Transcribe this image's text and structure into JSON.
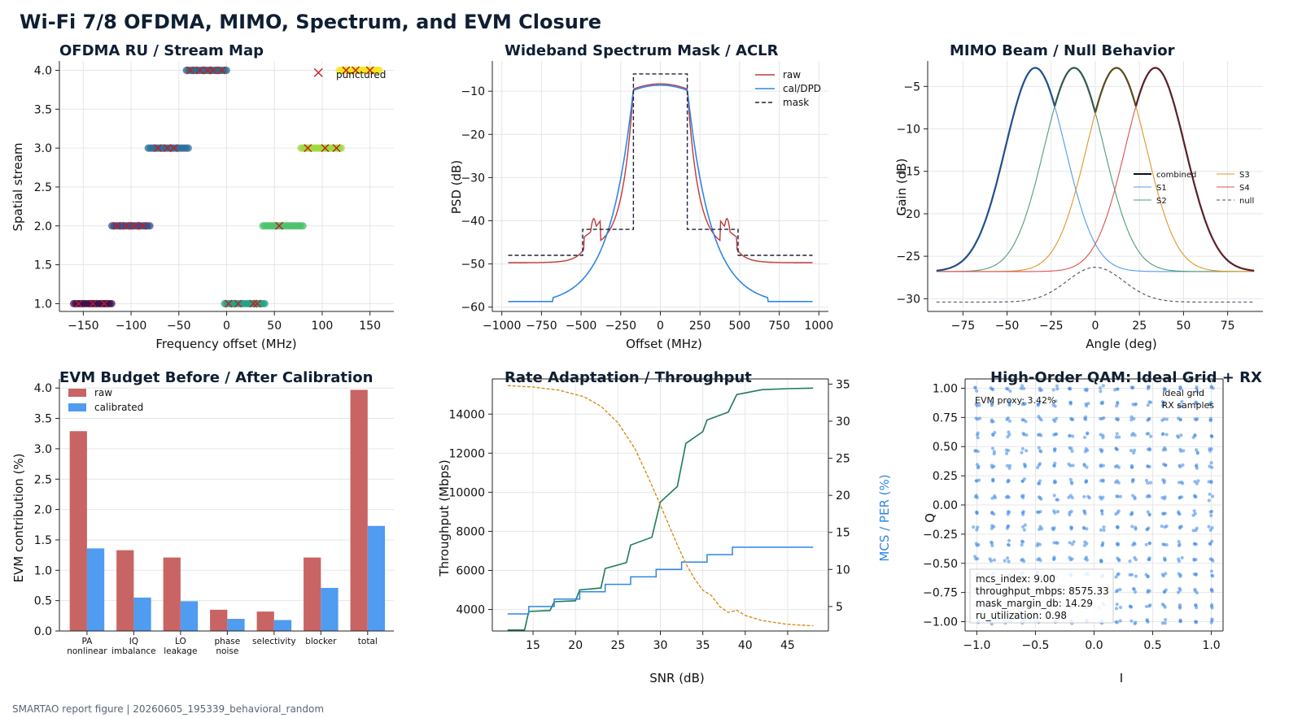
{
  "figure": {
    "title": "Wi-Fi 7/8 OFDMA, MIMO, Spectrum, and EVM Closure",
    "footer": "SMARTAO report figure | 20260605_195339_behavioral_random"
  },
  "chart_data": [
    {
      "id": "ofdma",
      "type": "scatter",
      "title": "OFDMA RU / Stream Map",
      "xlabel": "Frequency offset (MHz)",
      "ylabel": "Spatial stream",
      "xlim": [
        -175,
        175
      ],
      "ylim": [
        0.9,
        4.12
      ],
      "xticks": [
        -150,
        -100,
        -50,
        0,
        50,
        100,
        150
      ],
      "yticks": [
        1.0,
        1.5,
        2.0,
        2.5,
        3.0,
        3.5,
        4.0
      ],
      "grid": true,
      "annotation": "punctured",
      "ru_segments": [
        {
          "stream": 1,
          "x0": -160,
          "x1": -120,
          "color": "#3b0f4f",
          "marks": [
            -155,
            -140,
            -128
          ]
        },
        {
          "stream": 1,
          "x0": -2,
          "x1": 40,
          "color": "#21a08a",
          "marks": [
            2,
            12,
            28,
            32
          ]
        },
        {
          "stream": 2,
          "x0": -120,
          "x1": -80,
          "color": "#3d4d8a",
          "marks": [
            -115,
            -105,
            -96,
            -88
          ]
        },
        {
          "stream": 2,
          "x0": 38,
          "x1": 80,
          "color": "#4cc26c",
          "marks": [
            55
          ]
        },
        {
          "stream": 3,
          "x0": -82,
          "x1": -40,
          "color": "#2f6e98",
          "marks": [
            -72,
            -62,
            -55
          ]
        },
        {
          "stream": 3,
          "x0": 78,
          "x1": 120,
          "color": "#9dd93b",
          "marks": [
            85,
            103,
            115
          ]
        },
        {
          "stream": 4,
          "x0": -42,
          "x1": 0,
          "color": "#30698e",
          "marks": [
            -38,
            -28,
            -20,
            -14,
            -5
          ]
        },
        {
          "stream": 4,
          "x0": 118,
          "x1": 160,
          "color": "#f5e51f",
          "marks": [
            125,
            135,
            150
          ]
        }
      ],
      "punctured_marker": {
        "x": 96,
        "stream": 3.97
      }
    },
    {
      "id": "spectrum",
      "type": "line",
      "title": "Wideband Spectrum Mask / ACLR",
      "xlabel": "Offset (MHz)",
      "ylabel": "PSD (dB)",
      "xlim": [
        -1060,
        1060
      ],
      "ylim": [
        -61,
        -3
      ],
      "xticks": [
        -1000,
        -750,
        -500,
        -250,
        0,
        250,
        500,
        750,
        1000
      ],
      "yticks": [
        -60,
        -50,
        -40,
        -30,
        -20,
        -10
      ],
      "grid": true,
      "legend": "top-right",
      "series": [
        {
          "name": "raw",
          "color": "#c0393b"
        },
        {
          "name": "cal/DPD",
          "color": "#2f86e6"
        },
        {
          "name": "mask",
          "color": "#1b2338"
        }
      ],
      "mask": [
        [
          -960,
          -48
        ],
        [
          -490,
          -48
        ],
        [
          -490,
          -42
        ],
        [
          -170,
          -42
        ],
        [
          -170,
          -6
        ],
        [
          170,
          -6
        ],
        [
          170,
          -42
        ],
        [
          490,
          -42
        ],
        [
          490,
          -48
        ],
        [
          960,
          -48
        ]
      ],
      "raw_curve": {
        "peak": -8.3,
        "floor": -49.7,
        "shoulder_at": 420,
        "shoulder_level": -43.5
      },
      "cal_curve": {
        "peak": -8.6,
        "floor": -58.7,
        "floor_from": 680
      }
    },
    {
      "id": "mimo",
      "type": "line",
      "title": "MIMO Beam / Null Behavior",
      "xlabel": "Angle (deg)",
      "ylabel": "Gain (dB)",
      "xlim": [
        -95,
        95
      ],
      "ylim": [
        -31.5,
        -2
      ],
      "xticks": [
        -75,
        -50,
        -25,
        0,
        25,
        50,
        75
      ],
      "yticks": [
        -30,
        -25,
        -20,
        -15,
        -10,
        -5
      ],
      "grid": true,
      "legend": "center-right",
      "beams": [
        {
          "name": "S1",
          "center": -34,
          "color": "#4d9ee8"
        },
        {
          "name": "S2",
          "center": -12,
          "color": "#4f9d72"
        },
        {
          "name": "S3",
          "center": 12,
          "color": "#e0952a"
        },
        {
          "name": "S4",
          "center": 34,
          "color": "#d9534f"
        }
      ],
      "beam_peak": -2.8,
      "beam_floor": -26.8,
      "beam_width": 17,
      "combined": {
        "name": "combined",
        "color": "#0d0d1a"
      },
      "null": {
        "name": "null",
        "color": "#4a4f63",
        "floor": -30.4,
        "peak": -26.3
      }
    },
    {
      "id": "evm",
      "type": "bar",
      "title": "EVM Budget Before / After Calibration",
      "ylabel": "EVM contribution (%)",
      "ylim": [
        0,
        4.15
      ],
      "yticks": [
        0.0,
        0.5,
        1.0,
        1.5,
        2.0,
        2.5,
        3.0,
        3.5,
        4.0
      ],
      "grid": true,
      "legend": "top-left",
      "categories": [
        [
          "PA",
          "nonlinear"
        ],
        [
          "IQ",
          "imbalance"
        ],
        [
          "LO",
          "leakage"
        ],
        [
          "phase",
          "noise"
        ],
        [
          "selectivity"
        ],
        [
          "blocker"
        ],
        [
          "total"
        ]
      ],
      "series": [
        {
          "name": "raw",
          "color": "#c96464",
          "values": [
            3.29,
            1.33,
            1.21,
            0.35,
            0.32,
            1.21,
            3.97
          ]
        },
        {
          "name": "calibrated",
          "color": "#4f9cf0",
          "values": [
            1.36,
            0.55,
            0.49,
            0.2,
            0.18,
            0.71,
            1.73
          ]
        }
      ]
    },
    {
      "id": "rate",
      "type": "line",
      "title": "Rate Adaptation / Throughput",
      "xlabel": "SNR (dB)",
      "ylabel": "Throughput (Mbps)",
      "y2label": "MCS / PER (%)",
      "xlim": [
        10.2,
        49.8
      ],
      "ylim": [
        2900,
        15800
      ],
      "y2lim": [
        1.7,
        35.7
      ],
      "xticks": [
        15,
        20,
        25,
        30,
        35,
        40,
        45
      ],
      "yticks": [
        4000,
        6000,
        8000,
        10000,
        12000,
        14000
      ],
      "y2ticks": [
        5,
        10,
        15,
        20,
        25,
        30,
        35
      ],
      "grid": true,
      "throughput": {
        "color": "#1e7b56",
        "x": [
          12,
          14,
          14.5,
          17,
          17.5,
          20,
          20.5,
          23,
          23.5,
          26,
          26.5,
          29,
          30,
          32,
          33,
          35,
          35.5,
          38,
          39,
          42,
          45,
          48
        ],
        "y": [
          2950,
          2950,
          3900,
          3950,
          4400,
          4450,
          5000,
          5100,
          6100,
          6400,
          7300,
          7700,
          9500,
          10300,
          12500,
          13100,
          13700,
          14100,
          15000,
          15250,
          15300,
          15330
        ]
      },
      "mcs": {
        "color": "#2f86e6",
        "x": [
          12,
          14.5,
          17.5,
          20.5,
          23.5,
          26.5,
          29.5,
          32.5,
          35.5,
          38.5,
          48
        ],
        "y": [
          4,
          5,
          6,
          7,
          8,
          9,
          10,
          11,
          12,
          13,
          13
        ]
      },
      "per": {
        "color": "#d4860b",
        "x": [
          12,
          15,
          18,
          21,
          23,
          25,
          27,
          28.5,
          30,
          31,
          32,
          33,
          34,
          35,
          36,
          37,
          38,
          39,
          40,
          42,
          45,
          48
        ],
        "y": [
          34.8,
          34.6,
          34.2,
          33.3,
          32.0,
          29.8,
          26.3,
          22.6,
          18.7,
          16.0,
          13.3,
          10.8,
          8.8,
          7.2,
          6.5,
          5.0,
          4.2,
          4.5,
          3.8,
          3.1,
          2.6,
          2.4
        ]
      }
    },
    {
      "id": "qam",
      "type": "scatter",
      "title": "High-Order QAM: Ideal Grid + RX",
      "xlabel": "I",
      "ylabel": "Q",
      "xlim": [
        -1.1,
        1.1
      ],
      "ylim": [
        -1.08,
        1.08
      ],
      "xticks": [
        -1.0,
        -0.5,
        0.0,
        0.5,
        1.0
      ],
      "yticks": [
        -1.0,
        -0.75,
        -0.5,
        -0.25,
        0.0,
        0.25,
        0.5,
        0.75,
        1.0
      ],
      "grid": true,
      "legend": "top-right",
      "grid_levels": 16,
      "rx_color": "#3a86e8",
      "series_names": [
        "ideal grid",
        "RX samples"
      ],
      "evm_label": "EVM proxy: 3.42%",
      "metrics": [
        "mcs_index: 9.00",
        "throughput_mbps: 8575.33",
        "mask_margin_db: 14.29",
        "ru_utilization: 0.98"
      ]
    }
  ]
}
